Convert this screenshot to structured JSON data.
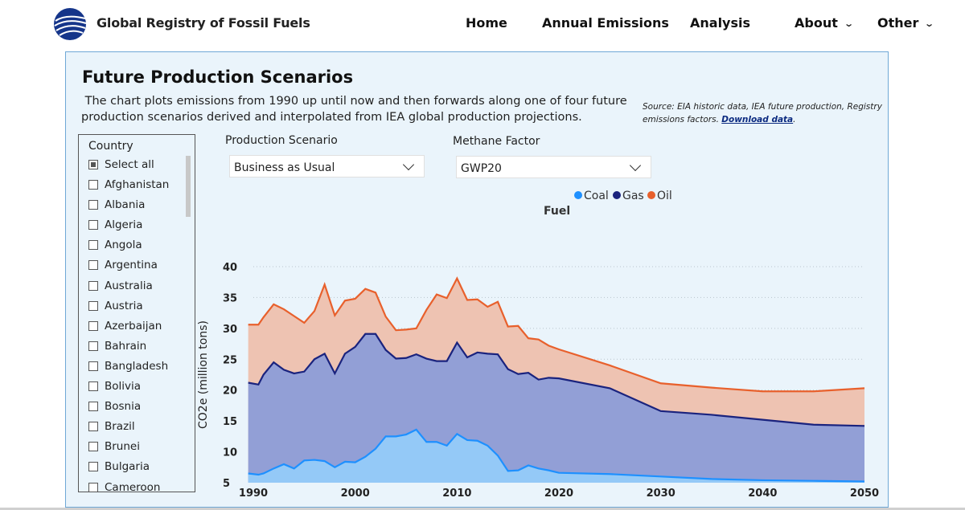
{
  "header": {
    "brand": "Global Registry of Fossil Fuels",
    "nav": [
      {
        "label": "Home"
      },
      {
        "label": "Annual Emissions"
      },
      {
        "label": "Analysis"
      },
      {
        "label": "About"
      },
      {
        "label": "Other"
      }
    ]
  },
  "panel": {
    "title": "Future Production Scenarios",
    "description": " The chart plots emissions from 1990 up until now and then forwards along one of four future production scenarios derived and interpolated from IEA global production projections.",
    "source_text": "Source: EIA historic data, IEA future production, Registry emissions factors. ",
    "source_link": "Download data",
    "source_end": "."
  },
  "slicer": {
    "title": "Country",
    "items": [
      {
        "label": "Select all"
      },
      {
        "label": "Afghanistan"
      },
      {
        "label": "Albania"
      },
      {
        "label": "Algeria"
      },
      {
        "label": "Angola"
      },
      {
        "label": "Argentina"
      },
      {
        "label": "Australia"
      },
      {
        "label": "Austria"
      },
      {
        "label": "Azerbaijan"
      },
      {
        "label": "Bahrain"
      },
      {
        "label": "Bangladesh"
      },
      {
        "label": "Bolivia"
      },
      {
        "label": "Bosnia"
      },
      {
        "label": "Brazil"
      },
      {
        "label": "Brunei"
      },
      {
        "label": "Bulgaria"
      },
      {
        "label": "Cameroon"
      }
    ]
  },
  "filters": {
    "scenario_label": "Production Scenario",
    "scenario_value": "Business as Usual",
    "methane_label": "Methane Factor",
    "methane_value": "GWP20"
  },
  "colors": {
    "coal": "#1e90ff",
    "gas": "#1a237e",
    "oil": "#e8602c"
  },
  "chart_data": {
    "type": "area",
    "stacked": true,
    "title": "",
    "xlabel": "",
    "ylabel": "CO2e (million tons)",
    "legend_title": "Fuel",
    "legend_position": "top",
    "xlim": [
      1990,
      2050
    ],
    "ylim": [
      5,
      40
    ],
    "xticks": [
      1990,
      2000,
      2010,
      2020,
      2030,
      2040,
      2050
    ],
    "yticks": [
      5,
      10,
      15,
      20,
      25,
      30,
      35,
      40
    ],
    "x": [
      1989.5,
      1990.5,
      1991,
      1992,
      1993,
      1994,
      1995,
      1996,
      1997,
      1998,
      1999,
      2000,
      2001,
      2002,
      2003,
      2004,
      2005,
      2006,
      2007,
      2008,
      2009,
      2010,
      2011,
      2012,
      2013,
      2014,
      2015,
      2016,
      2017,
      2018,
      2019,
      2020,
      2025,
      2030,
      2035,
      2040,
      2045,
      2050
    ],
    "series": [
      {
        "name": "Coal",
        "values": [
          6.5,
          6.3,
          6.5,
          7.3,
          8.0,
          7.3,
          8.6,
          8.7,
          8.5,
          7.5,
          8.4,
          8.3,
          9.2,
          10.5,
          12.5,
          12.5,
          12.8,
          13.6,
          11.6,
          11.6,
          11.0,
          12.9,
          11.9,
          11.8,
          11.0,
          9.4,
          6.9,
          7.0,
          7.8,
          7.3,
          7.0,
          6.6,
          6.4,
          6.0,
          5.6,
          5.4,
          5.3,
          5.2
        ]
      },
      {
        "name": "Gas",
        "values": [
          21.2,
          20.9,
          22.5,
          24.5,
          23.3,
          22.7,
          23.0,
          25.0,
          25.9,
          22.7,
          25.9,
          27.0,
          29.1,
          29.1,
          26.5,
          25.1,
          25.2,
          25.8,
          25.1,
          24.7,
          24.7,
          27.7,
          25.3,
          26.1,
          25.9,
          25.8,
          23.4,
          22.6,
          22.8,
          21.7,
          22.0,
          21.9,
          20.3,
          16.6,
          16.0,
          15.2,
          14.4,
          14.2
        ]
      },
      {
        "name": "Oil",
        "values": [
          30.6,
          30.6,
          31.8,
          33.9,
          33.1,
          32.0,
          30.9,
          32.8,
          37.1,
          32.1,
          34.5,
          34.8,
          36.4,
          35.8,
          31.9,
          29.7,
          29.8,
          30.0,
          33.0,
          35.5,
          34.9,
          38.1,
          34.6,
          34.7,
          33.5,
          34.3,
          30.3,
          30.4,
          28.4,
          28.2,
          27.2,
          26.6,
          24.0,
          21.1,
          20.4,
          19.8,
          19.8,
          20.3
        ]
      }
    ]
  }
}
